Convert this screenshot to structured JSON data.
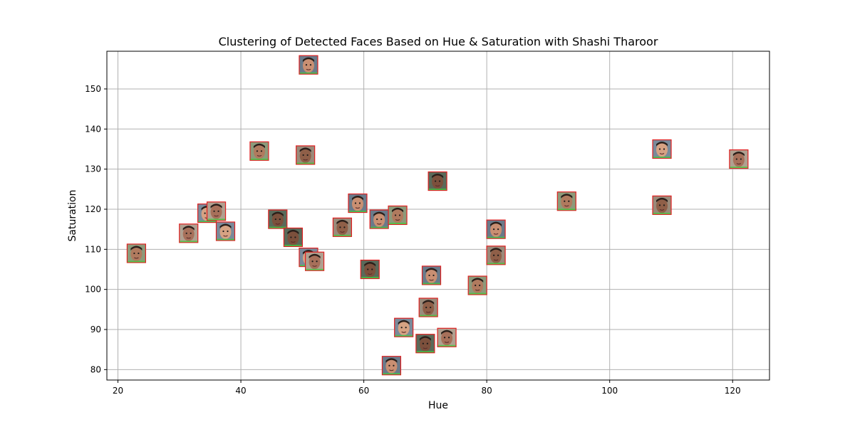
{
  "chart_data": {
    "type": "scatter",
    "title": "Clustering of Detected Faces Based on Hue & Saturation with Shashi Tharoor",
    "xlabel": "Hue",
    "ylabel": "Saturation",
    "xlim": [
      18.2,
      126.0
    ],
    "ylim": [
      77.4,
      159.4
    ],
    "xticks": [
      20,
      40,
      60,
      80,
      100,
      120
    ],
    "yticks": [
      80,
      90,
      100,
      110,
      120,
      130,
      140,
      150
    ],
    "grid": true,
    "marker": "face-thumbnail",
    "points": [
      {
        "x": 51,
        "y": 156
      },
      {
        "x": 43,
        "y": 134.5
      },
      {
        "x": 50.5,
        "y": 133.5
      },
      {
        "x": 108.5,
        "y": 135
      },
      {
        "x": 121,
        "y": 132.5
      },
      {
        "x": 72,
        "y": 127
      },
      {
        "x": 59,
        "y": 121.5
      },
      {
        "x": 93,
        "y": 122
      },
      {
        "x": 108.5,
        "y": 121
      },
      {
        "x": 34.5,
        "y": 119
      },
      {
        "x": 36,
        "y": 119.5
      },
      {
        "x": 46,
        "y": 117.5
      },
      {
        "x": 62.5,
        "y": 117.5
      },
      {
        "x": 65.5,
        "y": 118.5
      },
      {
        "x": 56.5,
        "y": 115.5
      },
      {
        "x": 37.5,
        "y": 114.5
      },
      {
        "x": 31.5,
        "y": 114
      },
      {
        "x": 48.5,
        "y": 113
      },
      {
        "x": 81.5,
        "y": 115
      },
      {
        "x": 23,
        "y": 109
      },
      {
        "x": 81.5,
        "y": 108.5
      },
      {
        "x": 51,
        "y": 108
      },
      {
        "x": 52,
        "y": 107
      },
      {
        "x": 61,
        "y": 105
      },
      {
        "x": 71,
        "y": 103.5
      },
      {
        "x": 78.5,
        "y": 101
      },
      {
        "x": 70.5,
        "y": 95.5
      },
      {
        "x": 66.5,
        "y": 90.5
      },
      {
        "x": 73.5,
        "y": 88
      },
      {
        "x": 70,
        "y": 86.5
      },
      {
        "x": 64.5,
        "y": 81
      }
    ]
  }
}
